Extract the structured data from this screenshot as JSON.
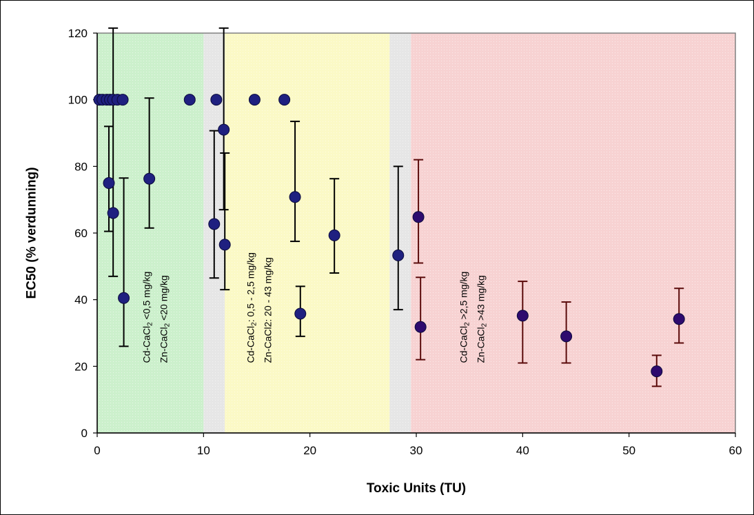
{
  "chart_data": {
    "type": "scatter",
    "xlabel": "Toxic Units (TU)",
    "ylabel": "EC50 (% verdunning)",
    "xlim": [
      0,
      60
    ],
    "ylim": [
      0,
      120
    ],
    "xticks": [
      "0",
      "10",
      "20",
      "30",
      "40",
      "50",
      "60"
    ],
    "yticks": [
      "0",
      "20",
      "40",
      "60",
      "80",
      "100",
      "120"
    ],
    "grid": false,
    "legend": "none",
    "regions": [
      {
        "x0": 0,
        "x1": 10,
        "color": "#ccf0cc"
      },
      {
        "x0": 10,
        "x1": 12,
        "color": "#e6e6e6"
      },
      {
        "x0": 12,
        "x1": 27.5,
        "color": "#fbf9c6"
      },
      {
        "x0": 27.5,
        "x1": 29.5,
        "color": "#e6e6e6"
      },
      {
        "x0": 29.5,
        "x1": 60,
        "color": "#f7d2d2"
      }
    ],
    "annotations": [
      {
        "x": 5.5,
        "y": 21,
        "lines": [
          {
            "prefix": "Cd-CaCl",
            "sub": "2",
            "suffix": " <0,5 mg/kg"
          },
          {
            "prefix": "Zn-CaCl",
            "sub": "2",
            "suffix": " <20 mg/kg"
          }
        ]
      },
      {
        "x": 15.3,
        "y": 21,
        "lines": [
          {
            "prefix": "Cd-CaCl",
            "sub": "2",
            "suffix": ": 0,5 - 2,5 mg/kg"
          },
          {
            "prefix": "Zn-CaCl2:  20 -  43 mg/kg",
            "sub": "",
            "suffix": ""
          }
        ]
      },
      {
        "x": 35.3,
        "y": 21,
        "lines": [
          {
            "prefix": "Cd-CaCl",
            "sub": "2",
            "suffix": " >2,5 mg/kg"
          },
          {
            "prefix": "Zn-CaCl",
            "sub": "2",
            "suffix": " >43 mg/kg"
          }
        ]
      }
    ],
    "series": [
      {
        "color": "#1f2080",
        "errcolor": "#000000",
        "points": [
          {
            "x": 0.2,
            "y": 100
          },
          {
            "x": 0.5,
            "y": 100
          },
          {
            "x": 0.9,
            "y": 100
          },
          {
            "x": 1.2,
            "y": 100
          },
          {
            "x": 1.5,
            "y": 100
          },
          {
            "x": 1.9,
            "y": 100
          },
          {
            "x": 2.4,
            "y": 100
          },
          {
            "x": 8.7,
            "y": 100
          },
          {
            "x": 11.2,
            "y": 100
          },
          {
            "x": 14.8,
            "y": 100
          },
          {
            "x": 17.6,
            "y": 100
          },
          {
            "x": 1.1,
            "y": 75,
            "lo": 60.5,
            "hi": 92
          },
          {
            "x": 1.5,
            "y": 66,
            "lo": 47,
            "hi": 121.5
          },
          {
            "x": 2.5,
            "y": 40.5,
            "lo": 26,
            "hi": 76.5
          },
          {
            "x": 4.9,
            "y": 76.3,
            "lo": 61.5,
            "hi": 100.5
          },
          {
            "x": 11.0,
            "y": 62.7,
            "lo": 46.5,
            "hi": 90.7
          },
          {
            "x": 11.9,
            "y": 91,
            "lo": 67,
            "hi": 121.5
          },
          {
            "x": 12.0,
            "y": 56.5,
            "lo": 43,
            "hi": 84
          },
          {
            "x": 18.6,
            "y": 70.8,
            "lo": 57.5,
            "hi": 93.5
          },
          {
            "x": 19.1,
            "y": 35.8,
            "lo": 29,
            "hi": 44
          },
          {
            "x": 22.3,
            "y": 59.3,
            "lo": 48,
            "hi": 76.3
          },
          {
            "x": 28.3,
            "y": 53.3,
            "lo": 37,
            "hi": 80
          }
        ]
      },
      {
        "color": "#2e0a6e",
        "errcolor": "#5a0a0a",
        "points": [
          {
            "x": 30.2,
            "y": 64.8,
            "lo": 51,
            "hi": 82
          },
          {
            "x": 30.4,
            "y": 31.8,
            "lo": 22,
            "hi": 46.7
          },
          {
            "x": 40.0,
            "y": 35.2,
            "lo": 21,
            "hi": 45.5
          },
          {
            "x": 44.1,
            "y": 29,
            "lo": 21,
            "hi": 39.3
          },
          {
            "x": 52.6,
            "y": 18.5,
            "lo": 14,
            "hi": 23.3
          },
          {
            "x": 54.7,
            "y": 34.2,
            "lo": 27,
            "hi": 43.4
          }
        ]
      }
    ]
  }
}
